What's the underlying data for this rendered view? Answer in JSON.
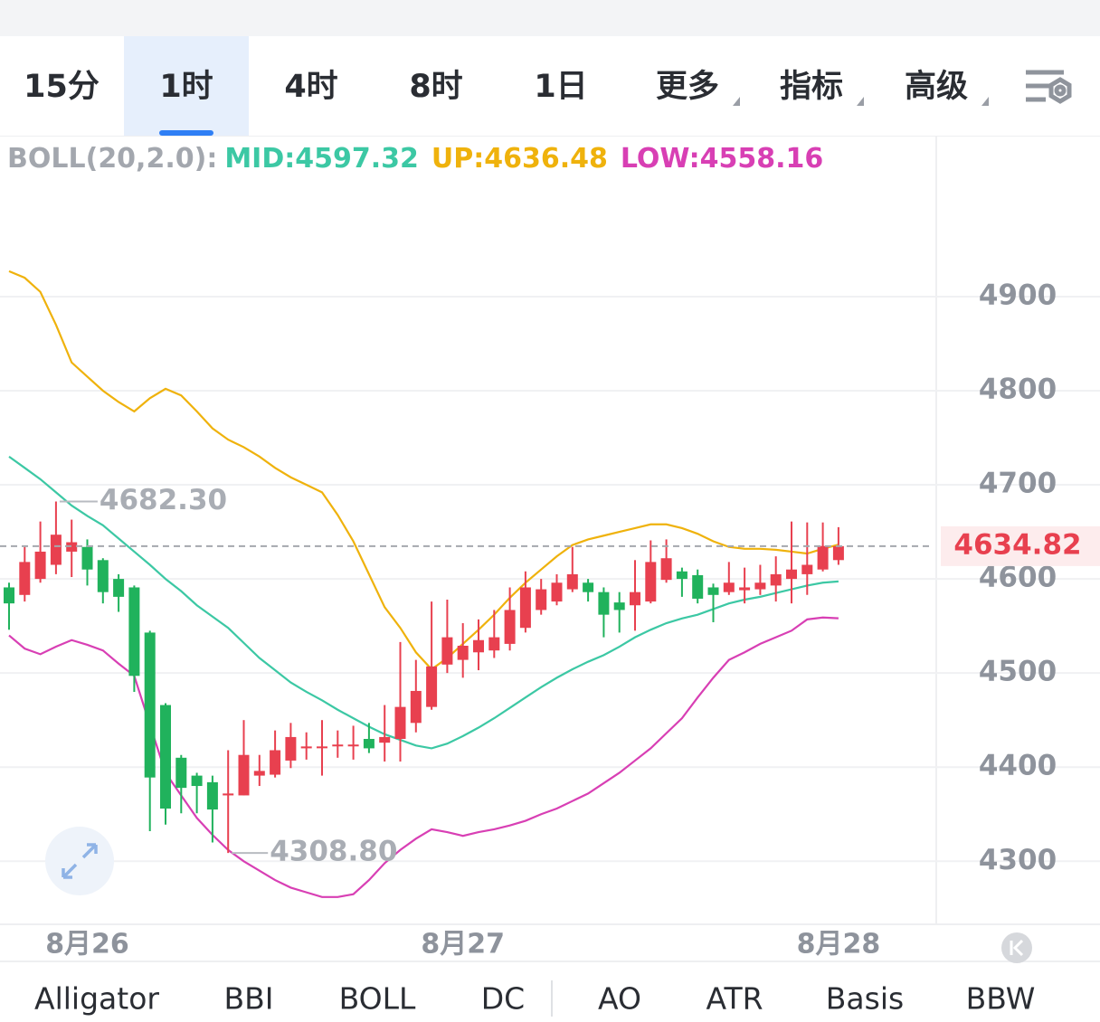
{
  "tabs": [
    {
      "label": "15分"
    },
    {
      "label": "1时"
    },
    {
      "label": "4时"
    },
    {
      "label": "8时"
    },
    {
      "label": "1日"
    },
    {
      "label": "更多",
      "dropdown": true
    },
    {
      "label": "指标",
      "dropdown": true
    },
    {
      "label": "高级",
      "dropdown": true
    }
  ],
  "active_tab": 1,
  "indicator_tabs": [
    "Alligator",
    "BBI",
    "BOLL",
    "DC",
    "AO",
    "ATR",
    "Basis",
    "BBW"
  ],
  "active_indicator": 2,
  "chart_data": {
    "type": "candlestick",
    "subtitle": "BOLL(20,2.0):",
    "categories": [
      null,
      null,
      null,
      null,
      null,
      "8月26",
      null,
      null,
      null,
      null,
      null,
      null,
      null,
      null,
      null,
      null,
      null,
      null,
      null,
      null,
      null,
      null,
      null,
      null,
      null,
      null,
      null,
      null,
      null,
      "8月27",
      null,
      null,
      null,
      null,
      null,
      null,
      null,
      null,
      null,
      null,
      null,
      null,
      null,
      null,
      null,
      null,
      null,
      null,
      null,
      null,
      null,
      null,
      null,
      "8月28"
    ],
    "open": [
      4591,
      4583,
      4600,
      4615,
      4629,
      4634,
      4620,
      4600,
      4591,
      4543,
      4466,
      4410,
      4391,
      4384,
      4370,
      4370,
      4391,
      4392,
      4407,
      4420,
      4421,
      4423,
      4423,
      4430,
      4426,
      4430,
      4447,
      4464,
      4509,
      4514,
      4522,
      4524,
      4531,
      4548,
      4567,
      4576,
      4589,
      4596,
      4586,
      4575,
      4572,
      4576,
      4599,
      4608,
      4604,
      4591,
      4586,
      4588,
      4589,
      4593,
      4600,
      4605,
      4610,
      4620
    ],
    "high": [
      4596,
      4634,
      4661,
      4682.3,
      4663,
      4642,
      4622,
      4605,
      4593,
      4545,
      4468,
      4413,
      4394,
      4391,
      4418,
      4450,
      4413,
      4439,
      4447,
      4437,
      4450,
      4439,
      4444,
      4447,
      4466,
      4533,
      4514,
      4576,
      4578,
      4553,
      4557,
      4567,
      4591,
      4608,
      4600,
      4605,
      4634,
      4600,
      4591,
      4586,
      4620,
      4641,
      4642,
      4612,
      4610,
      4595,
      4618,
      4612,
      4615,
      4624,
      4661,
      4660,
      4660,
      4655
    ],
    "low": [
      4546,
      4576,
      4596,
      4605,
      4602,
      4593,
      4574,
      4565,
      4480,
      4332,
      4339,
      4351,
      4351,
      4320,
      4308.8,
      4370,
      4380,
      4389,
      4399,
      4408,
      4391,
      4410,
      4408,
      4415,
      4406,
      4406,
      4437,
      4461,
      4500,
      4495,
      4503,
      4516,
      4524,
      4543,
      4562,
      4572,
      4586,
      4576,
      4538,
      4543,
      4545,
      4574,
      4596,
      4581,
      4574,
      4554,
      4583,
      4574,
      4583,
      4576,
      4574,
      4583,
      4608,
      4615
    ],
    "close": [
      4574,
      4618,
      4629,
      4647,
      4639,
      4610,
      4586,
      4581,
      4497,
      4389,
      4356,
      4378,
      4380,
      4355,
      4372,
      4413,
      4396,
      4418,
      4432,
      4422,
      4422,
      4424,
      4424,
      4420,
      4432,
      4464,
      4481,
      4507,
      4538,
      4529,
      4535,
      4538,
      4567,
      4591,
      4589,
      4596,
      4605,
      4586,
      4562,
      4567,
      4586,
      4618,
      4622,
      4600,
      4579,
      4583,
      4596,
      4591,
      4596,
      4605,
      4610,
      4615,
      4635,
      4634.82
    ],
    "up_color": "#e8404f",
    "down_color": "#20b25c",
    "series": [
      {
        "name": "MID:4597.32",
        "color": "#3cc8a4",
        "values": [
          4730,
          4718,
          4706,
          4692,
          4678,
          4667,
          4657,
          4643,
          4629,
          4615,
          4600,
          4587,
          4572,
          4560,
          4548,
          4532,
          4516,
          4503,
          4490,
          4480,
          4471,
          4461,
          4452,
          4443,
          4435,
          4429,
          4423,
          4420,
          4425,
          4433,
          4442,
          4452,
          4463,
          4474,
          4485,
          4495,
          4504,
          4512,
          4519,
          4528,
          4538,
          4546,
          4553,
          4558,
          4562,
          4568,
          4574,
          4578,
          4581,
          4585,
          4589,
          4593,
          4596,
          4597.32
        ]
      },
      {
        "name": "UP:4636.48",
        "color": "#efb20c",
        "values": [
          4927,
          4920,
          4905,
          4870,
          4830,
          4815,
          4800,
          4788,
          4778,
          4792,
          4802,
          4795,
          4778,
          4760,
          4748,
          4740,
          4730,
          4718,
          4708,
          4700,
          4692,
          4668,
          4640,
          4605,
          4570,
          4548,
          4522,
          4504,
          4516,
          4531,
          4546,
          4562,
          4580,
          4596,
          4610,
          4624,
          4636,
          4642,
          4646,
          4650,
          4654,
          4658,
          4658,
          4654,
          4648,
          4640,
          4634,
          4632,
          4632,
          4631,
          4629,
          4627,
          4632,
          4636.48
        ]
      },
      {
        "name": "LOW:4558.16",
        "color": "#d83fb4",
        "values": [
          4540,
          4526,
          4520,
          4528,
          4535,
          4530,
          4524,
          4510,
          4497,
          4445,
          4394,
          4370,
          4346,
          4328,
          4312,
          4300,
          4290,
          4280,
          4272,
          4267,
          4262,
          4262,
          4265,
          4280,
          4298,
          4312,
          4324,
          4334,
          4331,
          4327,
          4331,
          4334,
          4338,
          4343,
          4350,
          4356,
          4364,
          4372,
          4383,
          4394,
          4407,
          4420,
          4436,
          4452,
          4474,
          4495,
          4514,
          4522,
          4531,
          4538,
          4545,
          4557,
          4559,
          4558.16
        ]
      }
    ],
    "max_label": {
      "value": 4682.3,
      "label": "4682.30"
    },
    "min_label": {
      "value": 4308.8,
      "label": "4308.80"
    },
    "last_price": {
      "value": 4634.82,
      "label": "4634.82"
    },
    "ylim": [
      4233,
      5071
    ],
    "yticks": [
      4300,
      4400,
      4500,
      4600,
      4700,
      4800,
      4900
    ],
    "grid": true
  }
}
